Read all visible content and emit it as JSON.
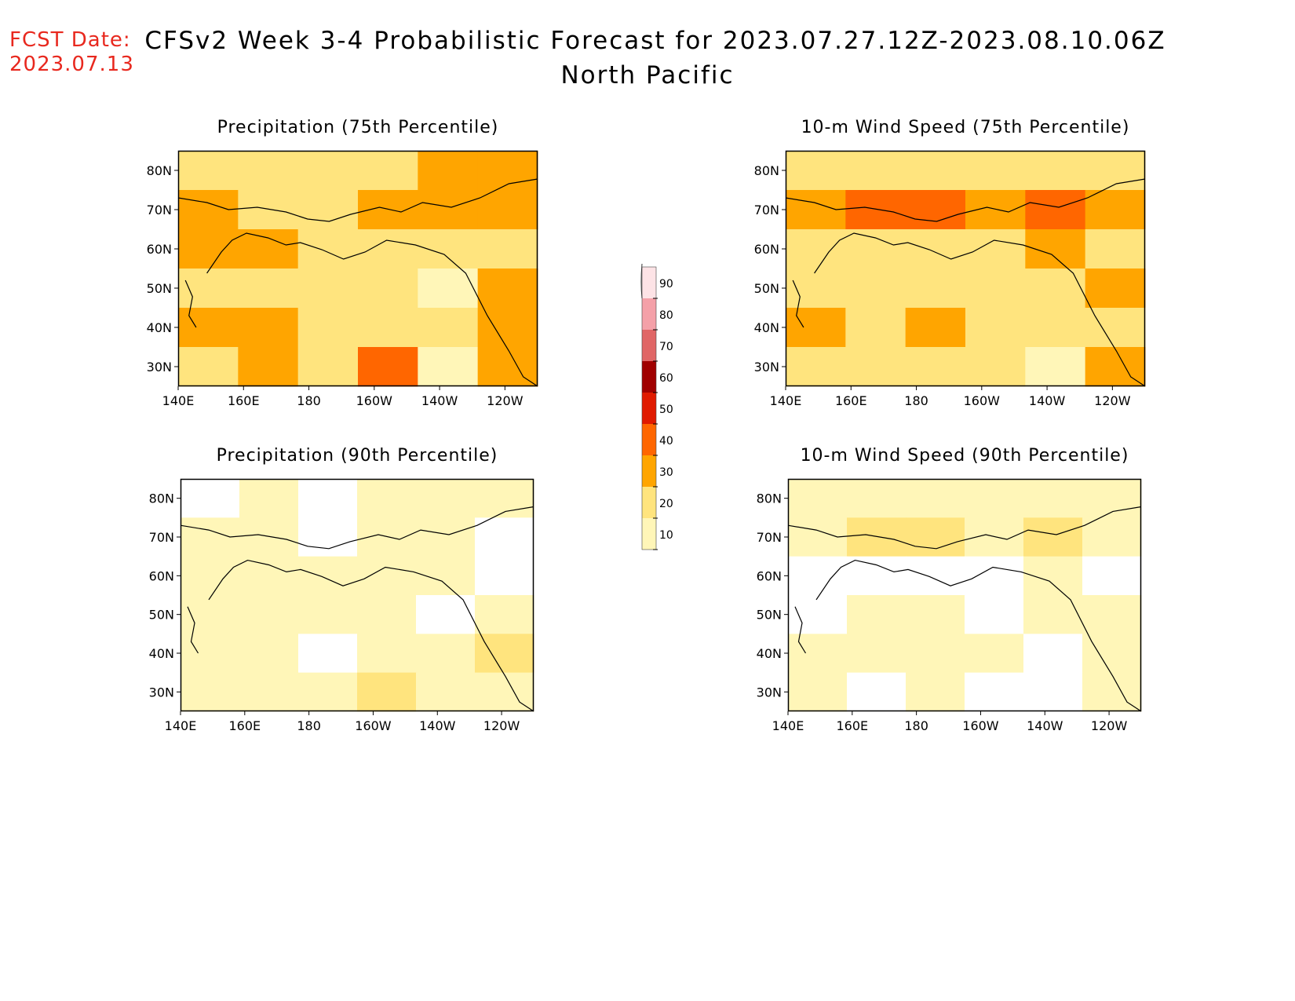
{
  "header": {
    "fcst_label": "FCST Date:",
    "fcst_date": "2023.07.13",
    "title": "CFSv2 Week 3-4 Probabilistic Forecast for 2023.07.27.12Z-2023.08.10.06Z",
    "subtitle": "North Pacific"
  },
  "colorbar": {
    "levels": [
      "10",
      "20",
      "30",
      "40",
      "50",
      "60",
      "70",
      "80",
      "90"
    ],
    "colors": [
      "#fff6b8",
      "#ffe47e",
      "#ffa500",
      "#ff6600",
      "#e01a00",
      "#a00000",
      "#e06666",
      "#f4a0a8",
      "#fde3e6"
    ]
  },
  "axes": {
    "lon_labels": [
      "140E",
      "160E",
      "180",
      "160W",
      "140W",
      "120W"
    ],
    "lat_labels": [
      "80N",
      "70N",
      "60N",
      "50N",
      "40N",
      "30N"
    ]
  },
  "chart_data": [
    {
      "type": "heatmap",
      "title": "Precipitation (75th Percentile)",
      "x": [
        "140E",
        "160E",
        "180",
        "160W",
        "140W",
        "120W"
      ],
      "y": [
        "80N",
        "70N",
        "60N",
        "50N",
        "40N",
        "30N"
      ],
      "values": [
        [
          20,
          20,
          20,
          20,
          30,
          30
        ],
        [
          30,
          20,
          20,
          30,
          30,
          30
        ],
        [
          30,
          30,
          20,
          20,
          20,
          20
        ],
        [
          20,
          20,
          20,
          20,
          10,
          30
        ],
        [
          30,
          30,
          20,
          20,
          20,
          30
        ],
        [
          20,
          30,
          20,
          40,
          10,
          30
        ]
      ]
    },
    {
      "type": "heatmap",
      "title": "10-m Wind Speed (75th Percentile)",
      "x": [
        "140E",
        "160E",
        "180",
        "160W",
        "140W",
        "120W"
      ],
      "y": [
        "80N",
        "70N",
        "60N",
        "50N",
        "40N",
        "30N"
      ],
      "values": [
        [
          20,
          20,
          20,
          20,
          20,
          20
        ],
        [
          30,
          40,
          40,
          30,
          40,
          30
        ],
        [
          20,
          20,
          20,
          20,
          30,
          20
        ],
        [
          20,
          20,
          20,
          20,
          20,
          30
        ],
        [
          30,
          20,
          30,
          20,
          20,
          20
        ],
        [
          20,
          20,
          20,
          20,
          10,
          30
        ]
      ]
    },
    {
      "type": "heatmap",
      "title": "Precipitation (90th Percentile)",
      "x": [
        "140E",
        "160E",
        "180",
        "160W",
        "140W",
        "120W"
      ],
      "y": [
        "80N",
        "70N",
        "60N",
        "50N",
        "40N",
        "30N"
      ],
      "values": [
        [
          0,
          10,
          0,
          10,
          10,
          10
        ],
        [
          10,
          10,
          0,
          10,
          10,
          0
        ],
        [
          10,
          10,
          10,
          10,
          10,
          0
        ],
        [
          10,
          10,
          10,
          10,
          0,
          10
        ],
        [
          10,
          10,
          0,
          10,
          10,
          20
        ],
        [
          10,
          10,
          10,
          20,
          10,
          10
        ]
      ]
    },
    {
      "type": "heatmap",
      "title": "10-m Wind Speed (90th Percentile)",
      "x": [
        "140E",
        "160E",
        "180",
        "160W",
        "140W",
        "120W"
      ],
      "y": [
        "80N",
        "70N",
        "60N",
        "50N",
        "40N",
        "30N"
      ],
      "values": [
        [
          10,
          10,
          10,
          10,
          10,
          10
        ],
        [
          10,
          20,
          20,
          10,
          20,
          10
        ],
        [
          0,
          0,
          0,
          0,
          10,
          0
        ],
        [
          0,
          10,
          10,
          0,
          10,
          10
        ],
        [
          10,
          10,
          10,
          10,
          0,
          10
        ],
        [
          10,
          0,
          10,
          0,
          0,
          10
        ]
      ]
    }
  ]
}
